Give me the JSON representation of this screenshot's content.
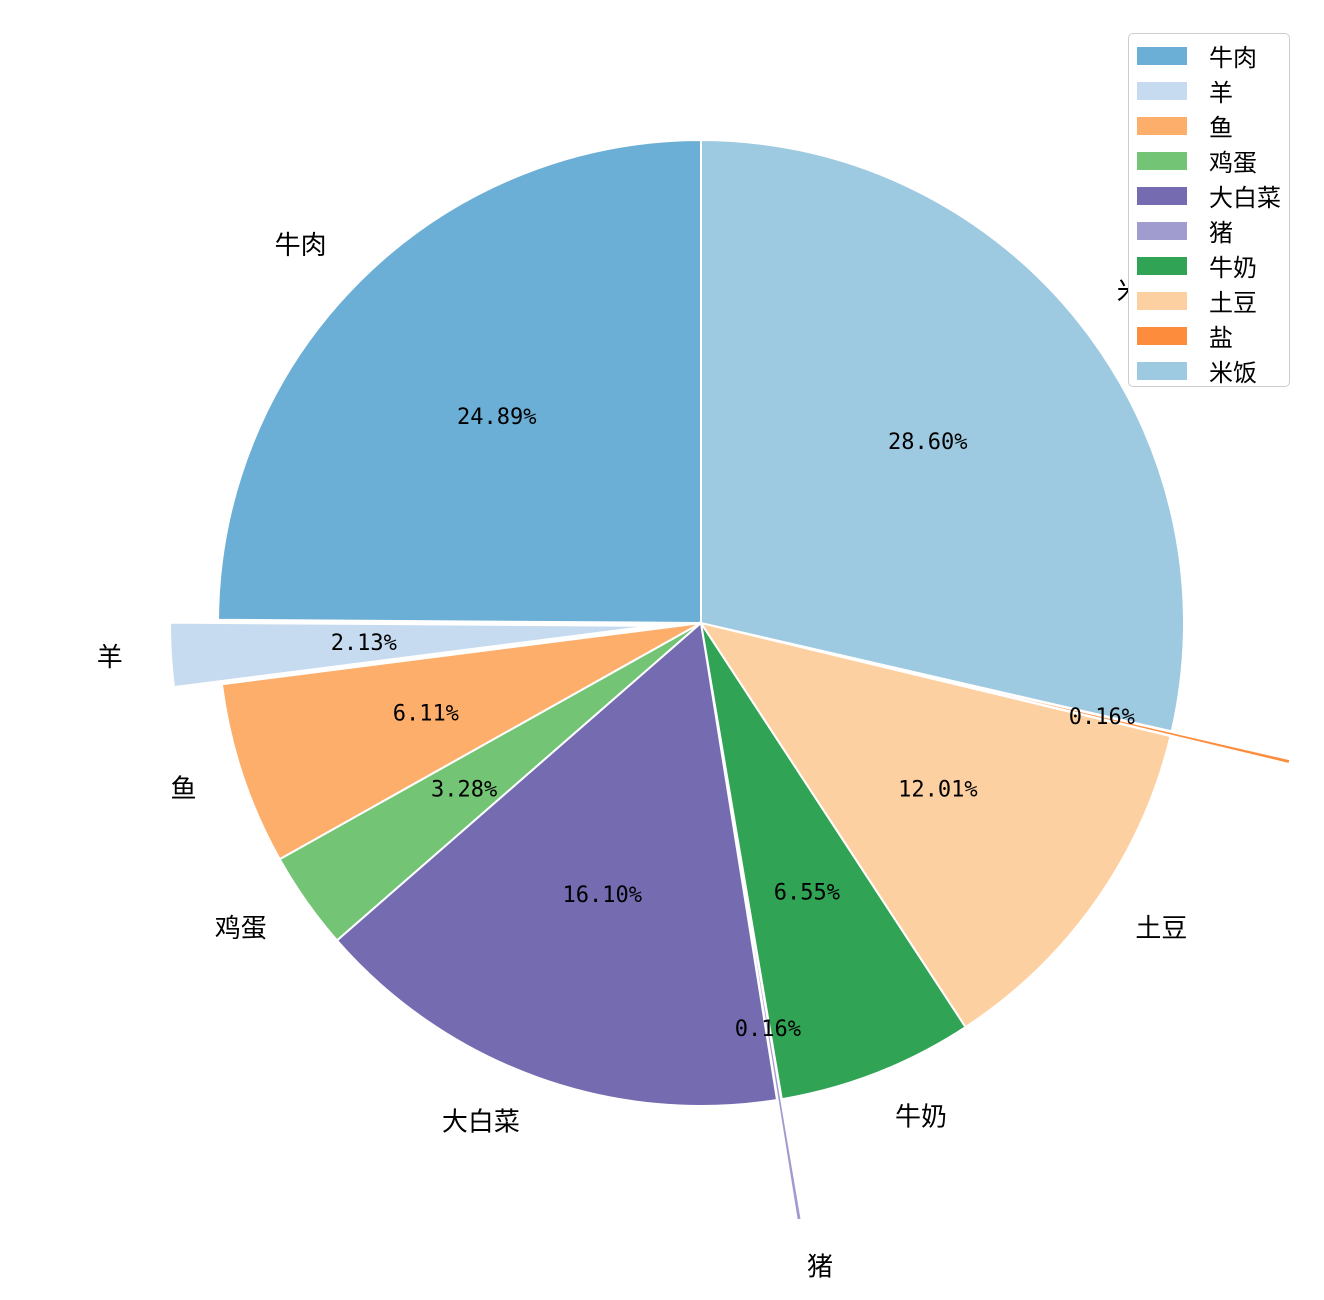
{
  "chart_data": {
    "type": "pie",
    "categories": [
      "牛肉",
      "羊",
      "鱼",
      "鸡蛋",
      "大白菜",
      "猪",
      "牛奶",
      "土豆",
      "盐",
      "米饭"
    ],
    "values": [
      24.89,
      2.13,
      6.11,
      3.28,
      16.1,
      0.16,
      6.55,
      12.01,
      0.16,
      28.6
    ],
    "percent_labels": [
      "24.89%",
      "2.13%",
      "6.11%",
      "3.28%",
      "16.10%",
      "0.16%",
      "6.55%",
      "12.01%",
      "0.16%",
      "28.60%"
    ],
    "colors": [
      "#6baed6",
      "#c6dbef",
      "#fdae6b",
      "#74c476",
      "#756bb1",
      "#a19ccf",
      "#31a354",
      "#fdd0a2",
      "#fd8d3c",
      "#9ecae1"
    ],
    "exploded": [
      "羊",
      "猪",
      "盐"
    ],
    "legend_position": "top-right",
    "title": ""
  }
}
